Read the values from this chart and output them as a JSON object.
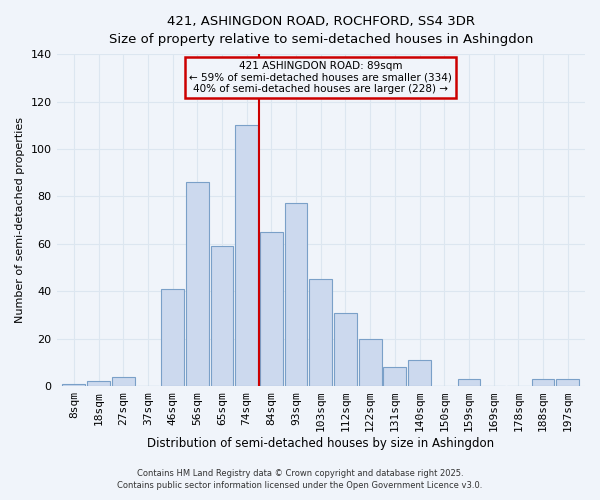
{
  "title": "421, ASHINGDON ROAD, ROCHFORD, SS4 3DR",
  "subtitle": "Size of property relative to semi-detached houses in Ashingdon",
  "xlabel": "Distribution of semi-detached houses by size in Ashingdon",
  "ylabel": "Number of semi-detached properties",
  "bar_labels": [
    "8sqm",
    "18sqm",
    "27sqm",
    "37sqm",
    "46sqm",
    "56sqm",
    "65sqm",
    "74sqm",
    "84sqm",
    "93sqm",
    "103sqm",
    "112sqm",
    "122sqm",
    "131sqm",
    "140sqm",
    "150sqm",
    "159sqm",
    "169sqm",
    "178sqm",
    "188sqm",
    "197sqm"
  ],
  "bar_values": [
    1,
    2,
    4,
    0,
    41,
    86,
    59,
    110,
    65,
    77,
    45,
    31,
    20,
    8,
    11,
    0,
    3,
    0,
    0,
    3,
    3
  ],
  "bar_color": "#ccd9ee",
  "bar_edgecolor": "#7aa0c8",
  "vline_x_index": 8,
  "annotation_title": "421 ASHINGDON ROAD: 89sqm",
  "annotation_line1": "← 59% of semi-detached houses are smaller (334)",
  "annotation_line2": "40% of semi-detached houses are larger (228) →",
  "annotation_box_color": "#cc0000",
  "ylim": [
    0,
    140
  ],
  "yticks": [
    0,
    20,
    40,
    60,
    80,
    100,
    120,
    140
  ],
  "footer1": "Contains HM Land Registry data © Crown copyright and database right 2025.",
  "footer2": "Contains public sector information licensed under the Open Government Licence v3.0.",
  "background_color": "#f0f4fa",
  "grid_color": "#dce6f0"
}
